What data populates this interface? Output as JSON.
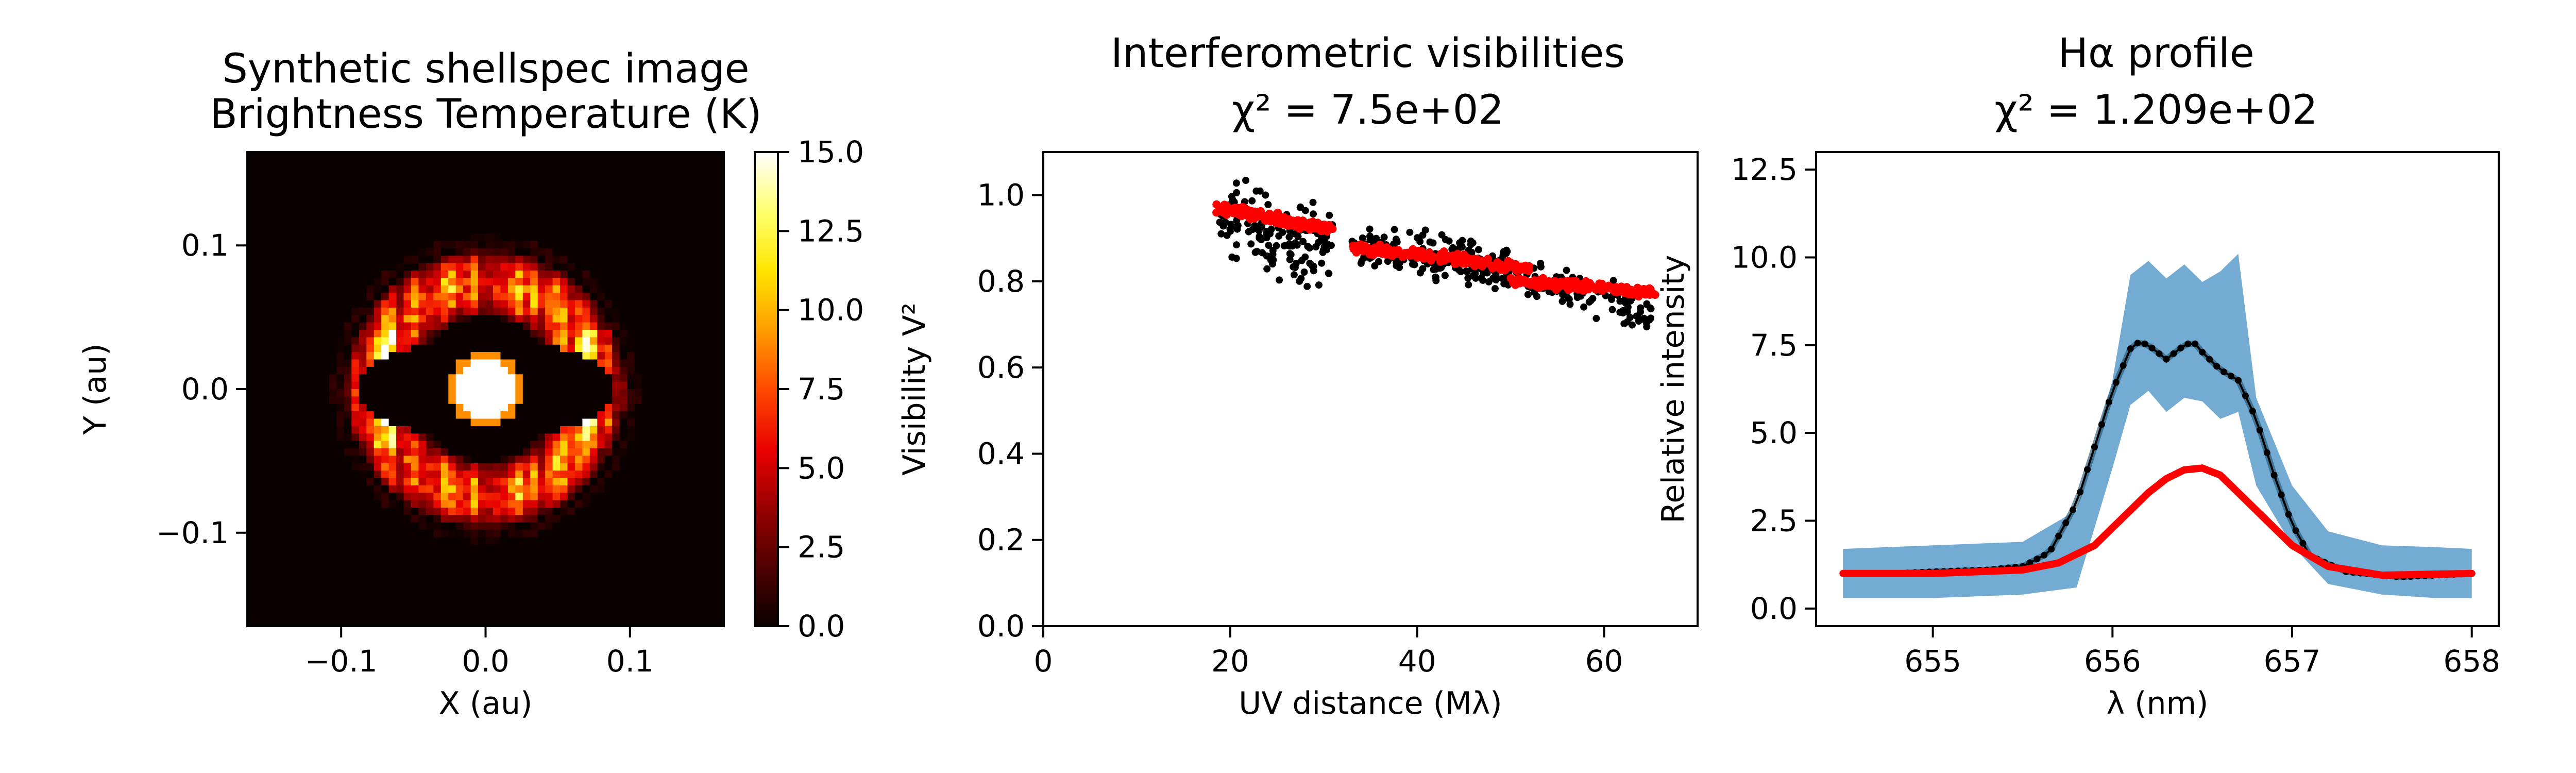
{
  "colors": {
    "black_series": "#000000",
    "red_series": "#ff0000",
    "band": "#74abd3",
    "background": "#ffffff"
  },
  "chart_data": [
    {
      "type": "heatmap",
      "title": [
        "Synthetic shellspec image",
        "Brightness Temperature (K)"
      ],
      "xlabel": "X (au)",
      "ylabel": "Y (au)",
      "xlim": [
        -0.165,
        0.165
      ],
      "ylim": [
        -0.165,
        0.165
      ],
      "xticks": [
        -0.1,
        0.0,
        0.1
      ],
      "xtick_labels": [
        "−0.1",
        "0.0",
        "0.1"
      ],
      "yticks": [
        -0.1,
        0.0,
        0.1
      ],
      "ytick_labels": [
        "−0.1",
        "0.0",
        "0.1"
      ],
      "colormap": "hot",
      "colorbar": {
        "range": [
          0.0,
          15.0
        ],
        "ticks": [
          0.0,
          2.5,
          5.0,
          7.5,
          10.0,
          12.5,
          15.0
        ],
        "tick_labels": [
          "0.0",
          "2.5",
          "5.0",
          "7.5",
          "10.0",
          "12.5",
          "15.0"
        ]
      },
      "grid": false,
      "features": {
        "central_star": {
          "radius_au": 0.02,
          "value": 15.0
        },
        "ring": {
          "inner_radius_au": 0.05,
          "outer_radius_au": 0.1,
          "peak_value": 7.5
        },
        "dark_band": {
          "half_width_au": 0.09,
          "half_height_au": 0.035
        }
      }
    },
    {
      "type": "scatter",
      "title": [
        "Interferometric visibilities",
        "χ² =  7.5e+02"
      ],
      "xlabel": "UV distance (Mλ)",
      "ylabel": "Visibility V²",
      "xlim": [
        0,
        70
      ],
      "ylim": [
        0,
        1.1
      ],
      "xticks": [
        0,
        20,
        40,
        60
      ],
      "xtick_labels": [
        "0",
        "20",
        "40",
        "60"
      ],
      "yticks": [
        0.0,
        0.2,
        0.4,
        0.6,
        0.8,
        1.0
      ],
      "ytick_labels": [
        "0.0",
        "0.2",
        "0.4",
        "0.6",
        "0.8",
        "1.0"
      ],
      "grid": false,
      "series": [
        {
          "color": "black",
          "segments": [
            {
              "x": [
                18.5,
                31
              ],
              "y": [
                0.96,
                0.87
              ],
              "scatter": 0.07
            },
            {
              "x": [
                33,
                50
              ],
              "y": [
                0.88,
                0.83
              ],
              "scatter": 0.04
            },
            {
              "x": [
                44,
                65.5
              ],
              "y": [
                0.85,
                0.72
              ],
              "scatter": 0.04
            }
          ]
        },
        {
          "color": "red",
          "segments": [
            {
              "x": [
                18.5,
                31
              ],
              "y": [
                0.97,
                0.92
              ]
            },
            {
              "x": [
                33,
                52
              ],
              "y": [
                0.88,
                0.83
              ]
            },
            {
              "x": [
                50,
                65.5
              ],
              "y": [
                0.8,
                0.775
              ]
            }
          ]
        }
      ]
    },
    {
      "type": "line",
      "title": [
        "Hα profile",
        "χ² =  1.209e+02"
      ],
      "xlabel": "λ (nm)",
      "ylabel": "Relative intensity",
      "xlim": [
        654.35,
        658.15
      ],
      "ylim": [
        -0.5,
        13.0
      ],
      "xticks": [
        655,
        656,
        657,
        658
      ],
      "xtick_labels": [
        "655",
        "656",
        "657",
        "658"
      ],
      "yticks": [
        0.0,
        2.5,
        5.0,
        7.5,
        10.0,
        12.5
      ],
      "ytick_labels": [
        "0.0",
        "2.5",
        "5.0",
        "7.5",
        "10.0",
        "12.5"
      ],
      "grid": false,
      "band": {
        "x": [
          654.5,
          655.0,
          655.5,
          655.8,
          656.0,
          656.1,
          656.2,
          656.3,
          656.4,
          656.5,
          656.6,
          656.7,
          656.8,
          657.0,
          657.2,
          657.5,
          657.8,
          658.0
        ],
        "upper": [
          1.7,
          1.8,
          1.9,
          2.8,
          6.5,
          9.5,
          9.9,
          9.4,
          9.8,
          9.3,
          9.6,
          10.1,
          6.0,
          3.5,
          2.2,
          1.8,
          1.75,
          1.7
        ],
        "lower": [
          0.3,
          0.3,
          0.4,
          0.6,
          4.0,
          5.8,
          6.2,
          5.6,
          6.0,
          5.9,
          5.4,
          5.6,
          3.5,
          1.8,
          0.7,
          0.4,
          0.3,
          0.3
        ]
      },
      "series": [
        {
          "color": "black",
          "x": [
            654.5,
            654.8,
            655.0,
            655.3,
            655.5,
            655.65,
            655.8,
            655.9,
            656.0,
            656.1,
            656.15,
            656.2,
            656.3,
            656.4,
            656.45,
            656.5,
            656.6,
            656.7,
            656.8,
            656.9,
            657.0,
            657.1,
            657.3,
            657.6,
            658.0
          ],
          "y": [
            1.0,
            1.0,
            1.05,
            1.1,
            1.2,
            1.6,
            3.0,
            4.6,
            6.2,
            7.4,
            7.6,
            7.5,
            7.1,
            7.5,
            7.6,
            7.3,
            6.8,
            6.5,
            5.4,
            3.8,
            2.4,
            1.5,
            1.05,
            0.9,
            1.0
          ]
        },
        {
          "color": "red",
          "x": [
            654.5,
            655.0,
            655.5,
            655.7,
            655.9,
            656.0,
            656.1,
            656.2,
            656.3,
            656.4,
            656.5,
            656.6,
            656.7,
            656.8,
            656.9,
            657.0,
            657.2,
            657.5,
            658.0
          ],
          "y": [
            1.0,
            1.0,
            1.1,
            1.3,
            1.8,
            2.3,
            2.8,
            3.3,
            3.7,
            3.95,
            4.0,
            3.8,
            3.3,
            2.8,
            2.3,
            1.8,
            1.2,
            0.95,
            1.0
          ]
        }
      ]
    }
  ]
}
